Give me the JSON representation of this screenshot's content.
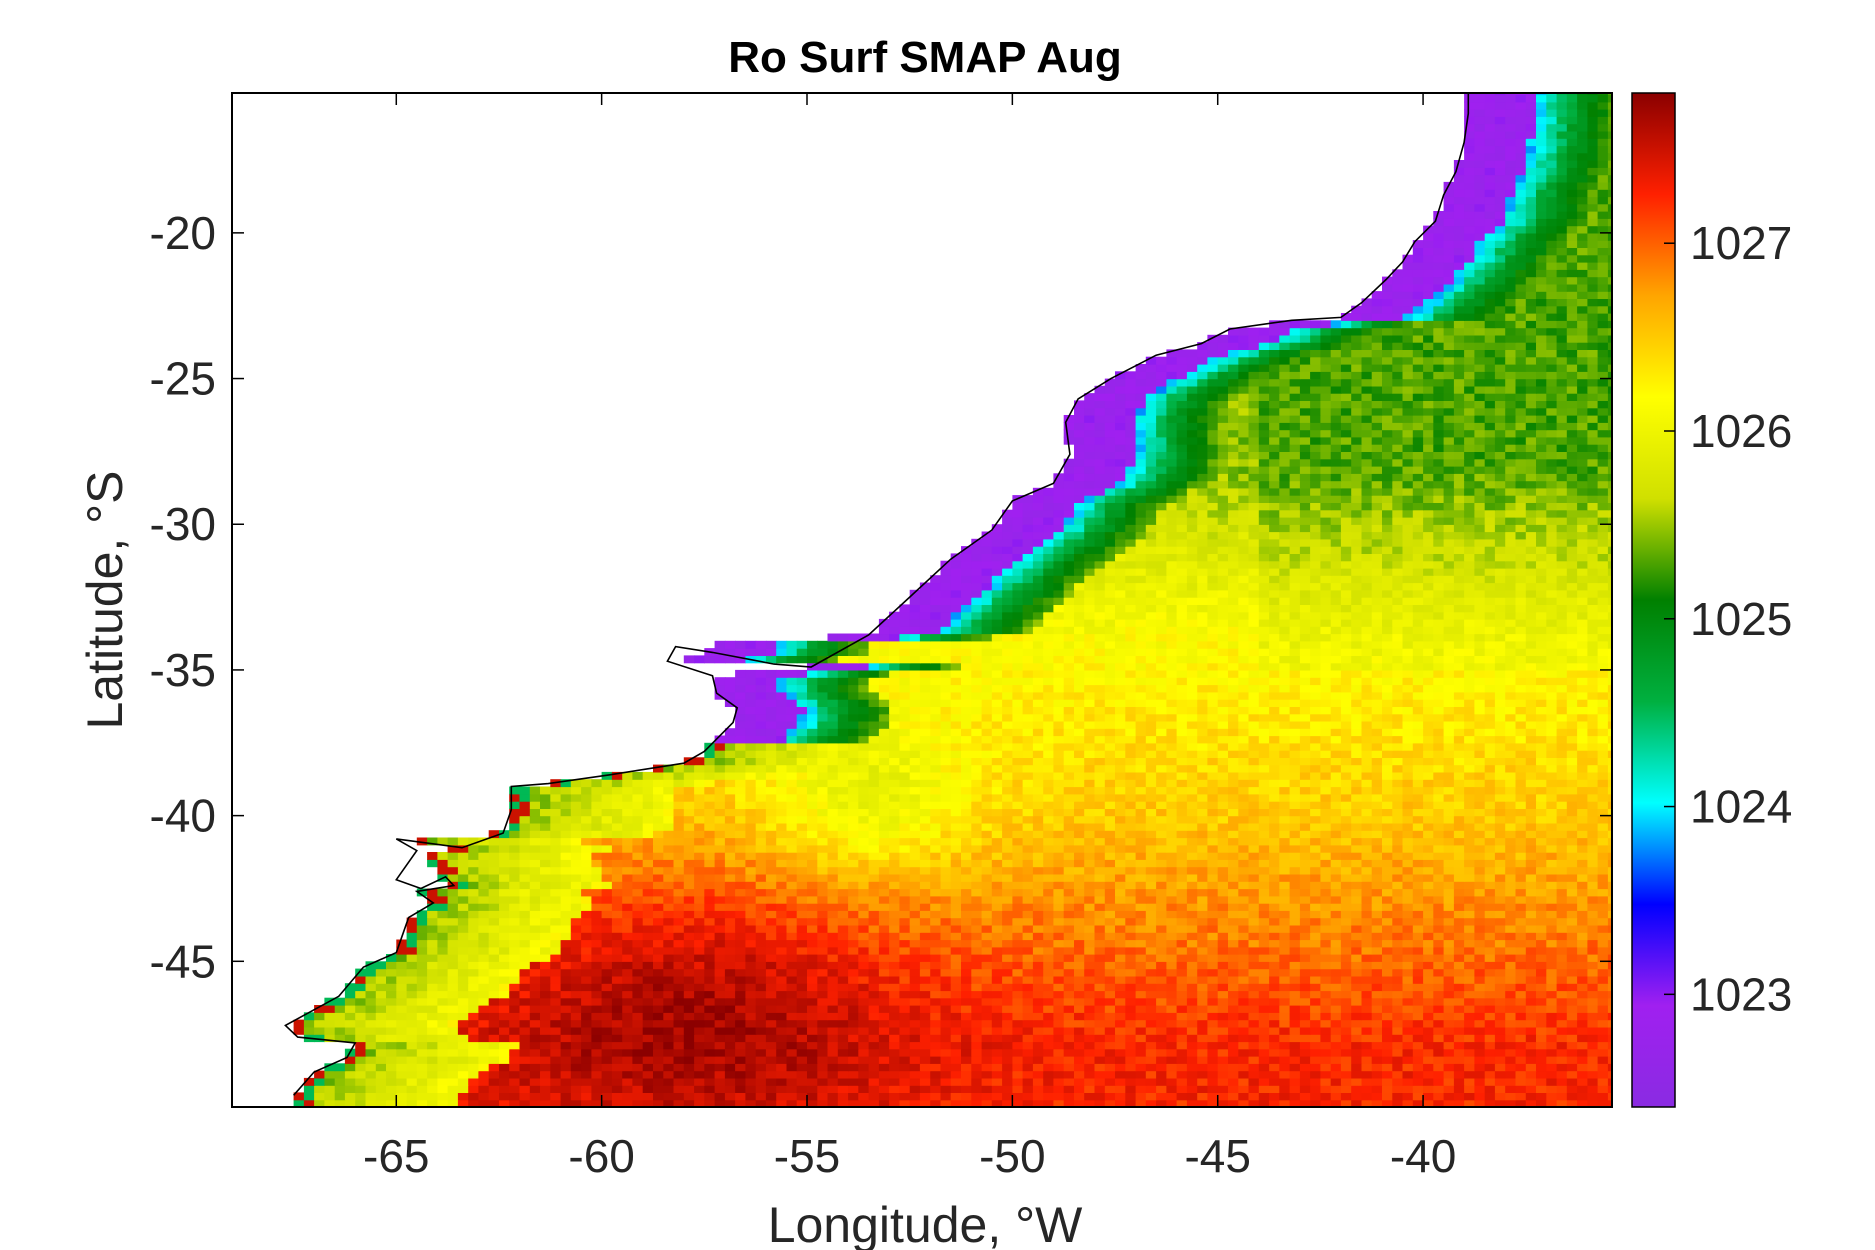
{
  "chart_data": {
    "type": "heatmap",
    "title": "Ro Surf SMAP Aug",
    "xlabel": "Longitude, °W",
    "ylabel": "Latitude, °S",
    "xlim": [
      -69.0,
      -35.4
    ],
    "ylim": [
      -50.0,
      -15.2
    ],
    "xticks": [
      -65,
      -60,
      -55,
      -50,
      -45,
      -40
    ],
    "xtick_labels": [
      "-65",
      "-60",
      "-55",
      "-50",
      "-45",
      "-40"
    ],
    "yticks": [
      -20,
      -25,
      -30,
      -35,
      -40,
      -45
    ],
    "ytick_labels": [
      "-20",
      "-25",
      "-30",
      "-35",
      "-40",
      "-45"
    ],
    "colorbar": {
      "min": 1022.4,
      "max": 1027.8,
      "ticks": [
        1023,
        1024,
        1025,
        1026,
        1027
      ],
      "tick_labels": [
        "1023",
        "1024",
        "1025",
        "1026",
        "1027"
      ],
      "colormap": [
        "#8a2be2",
        "#a020f0",
        "#0000ff",
        "#00ffff",
        "#00b040",
        "#008000",
        "#d0e000",
        "#ffff00",
        "#ffa500",
        "#ff2000",
        "#8b0000"
      ]
    },
    "grid": false,
    "coastline": [
      [
        -67.5,
        -49.6
      ],
      [
        -67.0,
        -48.8
      ],
      [
        -66.2,
        -48.3
      ],
      [
        -66.0,
        -47.8
      ],
      [
        -67.4,
        -47.6
      ],
      [
        -67.7,
        -47.2
      ],
      [
        -66.4,
        -46.2
      ],
      [
        -65.8,
        -45.2
      ],
      [
        -65.0,
        -44.7
      ],
      [
        -64.7,
        -43.5
      ],
      [
        -64.1,
        -43.0
      ],
      [
        -64.5,
        -42.6
      ],
      [
        -63.6,
        -42.4
      ],
      [
        -63.8,
        -42.1
      ],
      [
        -64.4,
        -42.5
      ],
      [
        -65.0,
        -42.2
      ],
      [
        -64.5,
        -41.2
      ],
      [
        -65.0,
        -40.8
      ],
      [
        -63.4,
        -41.1
      ],
      [
        -62.4,
        -40.6
      ],
      [
        -62.2,
        -39.8
      ],
      [
        -62.2,
        -39.0
      ],
      [
        -61.3,
        -38.9
      ],
      [
        -59.8,
        -38.6
      ],
      [
        -58.0,
        -38.2
      ],
      [
        -57.5,
        -37.8
      ],
      [
        -56.8,
        -36.8
      ],
      [
        -56.7,
        -36.3
      ],
      [
        -57.2,
        -35.8
      ],
      [
        -57.3,
        -35.2
      ],
      [
        -58.4,
        -34.7
      ],
      [
        -58.2,
        -34.2
      ],
      [
        -57.3,
        -34.4
      ],
      [
        -55.8,
        -34.8
      ],
      [
        -54.9,
        -34.9
      ],
      [
        -53.5,
        -33.8
      ],
      [
        -52.5,
        -32.5
      ],
      [
        -51.5,
        -31.2
      ],
      [
        -50.5,
        -30.2
      ],
      [
        -50.0,
        -29.2
      ],
      [
        -49.0,
        -28.6
      ],
      [
        -48.6,
        -27.6
      ],
      [
        -48.7,
        -26.5
      ],
      [
        -48.4,
        -25.7
      ],
      [
        -47.6,
        -25.0
      ],
      [
        -46.5,
        -24.2
      ],
      [
        -45.4,
        -23.8
      ],
      [
        -44.7,
        -23.3
      ],
      [
        -43.2,
        -23.0
      ],
      [
        -42.0,
        -22.9
      ],
      [
        -41.5,
        -22.4
      ],
      [
        -40.9,
        -21.6
      ],
      [
        -40.5,
        -21.0
      ],
      [
        -40.2,
        -20.3
      ],
      [
        -39.7,
        -19.6
      ],
      [
        -39.5,
        -18.7
      ],
      [
        -39.2,
        -17.9
      ],
      [
        -39.0,
        -16.9
      ],
      [
        -38.9,
        -15.9
      ],
      [
        -38.9,
        -15.2
      ]
    ],
    "field_model": {
      "description": "Gridded surface density values (kg/m3) shown as colored cells over ocean; land and inland areas are blank.",
      "regions": [
        {
          "name": "coastal plume",
          "approx_value": 1022.8
        },
        {
          "name": "shelf front",
          "approx_value": 1024.6
        },
        {
          "name": "north-east open ocean",
          "approx_value": 1025.5
        },
        {
          "name": "central latitudes",
          "approx_value": 1026.2
        },
        {
          "name": "southern open ocean",
          "approx_value": 1027.2
        }
      ]
    }
  }
}
